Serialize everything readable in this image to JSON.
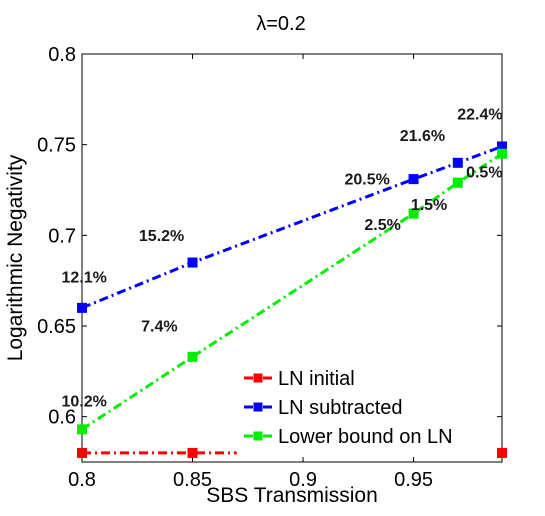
{
  "chart_data": {
    "type": "line",
    "title": "λ=0.2",
    "xlabel": "SBS Transmission",
    "ylabel": "Logarithmic Negativity",
    "xlim": [
      0.8,
      0.99
    ],
    "ylim": [
      0.575,
      0.8
    ],
    "xticks": [
      "0.8",
      "0.85",
      "0.9",
      "0.95"
    ],
    "yticks": [
      "0.6",
      "0.65",
      "0.7",
      "0.75",
      "0.8"
    ],
    "grid": false,
    "legend_position": "bottom-right",
    "series": [
      {
        "name": "LN initial",
        "color": "#ff0000",
        "x": [
          0.8,
          0.85,
          0.99
        ],
        "y": [
          0.58,
          0.58,
          0.58
        ],
        "line_extent_x": [
          0.8,
          0.87
        ]
      },
      {
        "name": "LN subtracted",
        "color": "#0000ff",
        "x": [
          0.8,
          0.85,
          0.95,
          0.97,
          0.99
        ],
        "y": [
          0.66,
          0.685,
          0.731,
          0.74,
          0.749
        ]
      },
      {
        "name": "Lower bound on LN",
        "color": "#00ee00",
        "x": [
          0.8,
          0.85,
          0.95,
          0.97,
          0.99
        ],
        "y": [
          0.593,
          0.633,
          0.712,
          0.729,
          0.745
        ]
      }
    ],
    "annotations": [
      {
        "text": "22.4%",
        "x": 0.98,
        "y": 0.764
      },
      {
        "text": "21.6%",
        "x": 0.954,
        "y": 0.752
      },
      {
        "text": "20.5%",
        "x": 0.929,
        "y": 0.728
      },
      {
        "text": "15.2%",
        "x": 0.836,
        "y": 0.697
      },
      {
        "text": "12.1%",
        "x": 0.801,
        "y": 0.674
      },
      {
        "text": "0.5%",
        "x": 0.982,
        "y": 0.732
      },
      {
        "text": "1.5%",
        "x": 0.957,
        "y": 0.714
      },
      {
        "text": "2.5%",
        "x": 0.936,
        "y": 0.703
      },
      {
        "text": "7.4%",
        "x": 0.835,
        "y": 0.647
      },
      {
        "text": "10.2%",
        "x": 0.801,
        "y": 0.6055
      }
    ]
  }
}
